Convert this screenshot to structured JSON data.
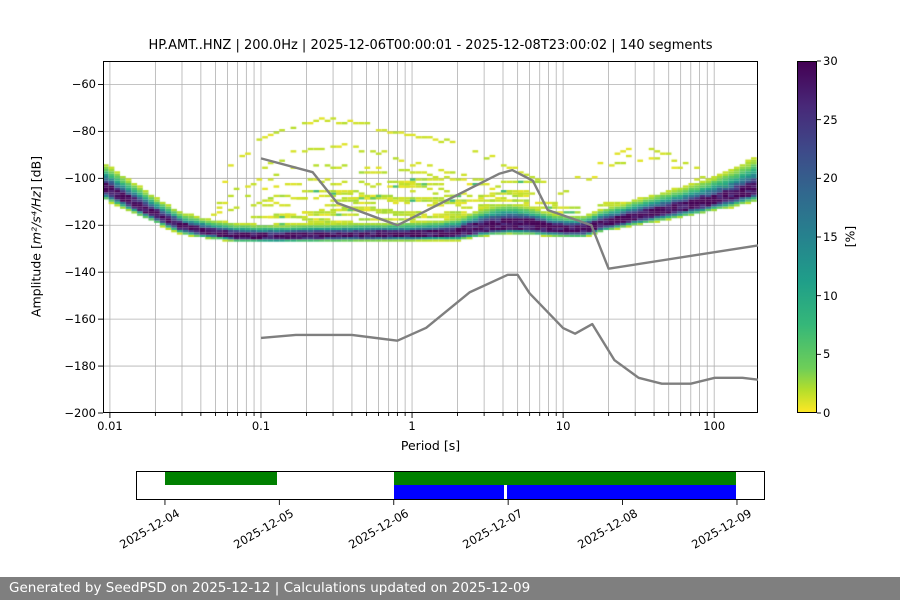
{
  "title": "HP.AMT..HNZ | 200.0Hz | 2025-12-06T00:00:01 - 2025-12-08T23:00:02 | 140 segments",
  "footer": "Generated by SeedPSD on 2025-12-12 | Calculations updated on 2025-12-09",
  "chart_data": {
    "type": "heatmap",
    "title": "HP.AMT..HNZ | 200.0Hz | 2025-12-06T00:00:01 - 2025-12-08T23:00:02 | 140 segments",
    "xlabel": "Period [s]",
    "ylabel": {
      "prefix": "Amplitude [",
      "math": "m²/s⁴/Hz",
      "suffix": "] [dB]"
    },
    "xscale": "log",
    "xlim": [
      0.009,
      195
    ],
    "ylim": [
      -200,
      -50
    ],
    "x_ticks": [
      0.01,
      0.1,
      1,
      10,
      100
    ],
    "x_tick_labels": [
      "0.01",
      "0.1",
      "1",
      "10",
      "100"
    ],
    "y_ticks": [
      -60,
      -80,
      -100,
      -120,
      -140,
      -160,
      -180,
      -200
    ],
    "y_tick_labels": [
      "−60",
      "−80",
      "−100",
      "−120",
      "−140",
      "−160",
      "−180",
      "−200"
    ],
    "grid": true,
    "colorbar": {
      "label": "[%]",
      "min": 0,
      "max": 30,
      "ticks": [
        0,
        5,
        10,
        15,
        20,
        25,
        30
      ],
      "colormap": "viridis_r",
      "stops": [
        [
          0,
          "#fde725"
        ],
        [
          0.0625,
          "#b5de2b"
        ],
        [
          0.125,
          "#6ece58"
        ],
        [
          0.25,
          "#35b779"
        ],
        [
          0.375,
          "#1f9e89"
        ],
        [
          0.5,
          "#26828e"
        ],
        [
          0.625,
          "#31688e"
        ],
        [
          0.75,
          "#3e4989"
        ],
        [
          0.875,
          "#482878"
        ],
        [
          1,
          "#440154"
        ]
      ]
    },
    "histogram_model": {
      "db_bin": 1,
      "period_step_octaves": 0.125,
      "mode_curve": [
        [
          0.009,
          -103.5
        ],
        [
          0.011,
          -106.5
        ],
        [
          0.015,
          -111
        ],
        [
          0.022,
          -116.5
        ],
        [
          0.03,
          -120.5
        ],
        [
          0.045,
          -122.8
        ],
        [
          0.07,
          -124.3
        ],
        [
          0.125,
          -124.6
        ],
        [
          0.25,
          -124.2
        ],
        [
          0.5,
          -124.0
        ],
        [
          1.0,
          -123.8
        ],
        [
          2.0,
          -123.0
        ],
        [
          3.0,
          -120.5
        ],
        [
          4.5,
          -119.2
        ],
        [
          6.0,
          -119.6
        ],
        [
          8.0,
          -120.8
        ],
        [
          11,
          -121.6
        ],
        [
          14,
          -121.5
        ],
        [
          17.8,
          -119.3
        ],
        [
          29.5,
          -116.3
        ],
        [
          49,
          -113.5
        ],
        [
          81,
          -110.6
        ],
        [
          135,
          -107.1
        ],
        [
          195,
          -104.0
        ]
      ],
      "core_halfwidth_db": [
        [
          0.009,
          1.6
        ],
        [
          0.02,
          1.0
        ],
        [
          0.05,
          0.8
        ],
        [
          0.3,
          0.8
        ],
        [
          1.5,
          0.9
        ],
        [
          3,
          1.6
        ],
        [
          5,
          1.9
        ],
        [
          7,
          1.5
        ],
        [
          10,
          1.1
        ],
        [
          20,
          1.2
        ],
        [
          60,
          1.3
        ],
        [
          195,
          1.5
        ]
      ],
      "spread_up_db": [
        [
          0.009,
          4.0
        ],
        [
          0.03,
          2.2
        ],
        [
          0.1,
          1.8
        ],
        [
          0.5,
          1.9
        ],
        [
          1.5,
          2.0
        ],
        [
          4,
          3.2
        ],
        [
          8,
          2.2
        ],
        [
          14,
          2.0
        ],
        [
          30,
          2.6
        ],
        [
          80,
          3.5
        ],
        [
          140,
          4.5
        ],
        [
          195,
          5.5
        ]
      ],
      "spread_down_db": [
        [
          0.009,
          2.0
        ],
        [
          0.05,
          1.1
        ],
        [
          1,
          1.1
        ],
        [
          5,
          1.5
        ],
        [
          20,
          1.3
        ],
        [
          100,
          1.8
        ],
        [
          195,
          2.2
        ]
      ],
      "scatter_top_db": [
        [
          0.009,
          12
        ],
        [
          0.018,
          6
        ],
        [
          0.03,
          8
        ],
        [
          0.05,
          4
        ],
        [
          0.08,
          8
        ],
        [
          0.1,
          14
        ],
        [
          0.15,
          20
        ],
        [
          0.3,
          26
        ],
        [
          0.6,
          27
        ],
        [
          1,
          25
        ],
        [
          2,
          24
        ],
        [
          4,
          22
        ],
        [
          7,
          20
        ],
        [
          10,
          16
        ],
        [
          15,
          10
        ],
        [
          25,
          8
        ],
        [
          50,
          8
        ],
        [
          100,
          8
        ],
        [
          150,
          10
        ],
        [
          195,
          13
        ]
      ],
      "scatter_density": [
        [
          0.009,
          0.4
        ],
        [
          0.02,
          0.2
        ],
        [
          0.05,
          0.15
        ],
        [
          0.1,
          0.35
        ],
        [
          0.2,
          0.5
        ],
        [
          0.5,
          0.55
        ],
        [
          1,
          0.5
        ],
        [
          3,
          0.5
        ],
        [
          7,
          0.45
        ],
        [
          12,
          0.35
        ],
        [
          25,
          0.3
        ],
        [
          60,
          0.25
        ],
        [
          120,
          0.3
        ],
        [
          195,
          0.45
        ]
      ],
      "outlier_arcs": [
        {
          "gap": 0.25,
          "pts": [
            [
              0.048,
              -117
            ],
            [
              0.065,
              -93.5
            ],
            [
              0.08,
              -88.6
            ],
            [
              0.11,
              -82.3
            ],
            [
              0.18,
              -77
            ],
            [
              0.3,
              -75
            ],
            [
              0.5,
              -76.5
            ],
            [
              0.65,
              -79.4
            ],
            [
              1.3,
              -82.8
            ],
            [
              2.1,
              -85
            ],
            [
              4,
              -94
            ],
            [
              5.6,
              -98
            ],
            [
              8,
              -102
            ]
          ]
        },
        {
          "gap": 0.45,
          "pts": [
            [
              0.05,
              -115
            ],
            [
              0.08,
              -100
            ],
            [
              0.12,
              -93
            ],
            [
              0.2,
              -88
            ],
            [
              0.3,
              -86
            ],
            [
              0.5,
              -88
            ],
            [
              1,
              -93
            ],
            [
              2,
              -98
            ],
            [
              4,
              -104
            ]
          ]
        },
        {
          "gap": 0.4,
          "pts": [
            [
              0.08,
              -104
            ],
            [
              0.16,
              -96
            ],
            [
              0.32,
              -94
            ],
            [
              1,
              -97
            ],
            [
              2.5,
              -102
            ],
            [
              6,
              -108
            ]
          ]
        },
        {
          "gap": 0.35,
          "pts": [
            [
              0.06,
              -110
            ],
            [
              0.13,
              -103
            ],
            [
              0.32,
              -101
            ],
            [
              1,
              -104
            ],
            [
              3.2,
              -108
            ],
            [
              10,
              -112
            ]
          ]
        },
        {
          "gap": 0.3,
          "pts": [
            [
              0.05,
              -115
            ],
            [
              0.1,
              -110
            ],
            [
              0.32,
              -107
            ],
            [
              1,
              -110
            ],
            [
              3.2,
              -113
            ],
            [
              10,
              -116
            ]
          ]
        },
        {
          "gap": 0.3,
          "pts": [
            [
              0.1,
              -117
            ],
            [
              0.32,
              -113
            ],
            [
              1,
              -115
            ],
            [
              4,
              -117
            ]
          ]
        },
        {
          "gap": 0.3,
          "pts": [
            [
              9,
              -108
            ],
            [
              12.6,
              -100
            ],
            [
              17.8,
              -93
            ],
            [
              26,
              -87.5
            ],
            [
              35,
              -87
            ],
            [
              50,
              -90
            ],
            [
              70,
              -95
            ],
            [
              100,
              -101
            ],
            [
              126,
              -105
            ]
          ]
        },
        {
          "gap": 0.5,
          "pts": [
            [
              12.6,
              -104
            ],
            [
              17.8,
              -97.5
            ],
            [
              26,
              -91.5
            ],
            [
              35,
              -91
            ],
            [
              50,
              -94
            ],
            [
              70,
              -99
            ],
            [
              90,
              -103
            ]
          ]
        }
      ]
    },
    "noise_models": {
      "color": "#7f7f7f",
      "nhnm": [
        [
          0.1,
          -91.5
        ],
        [
          0.22,
          -97.4
        ],
        [
          0.32,
          -110.5
        ],
        [
          0.8,
          -120.0
        ],
        [
          3.8,
          -98.0
        ],
        [
          4.6,
          -96.5
        ],
        [
          6.3,
          -101.0
        ],
        [
          7.9,
          -113.5
        ],
        [
          15.4,
          -120.0
        ],
        [
          20.0,
          -138.5
        ],
        [
          195.0,
          -128.6
        ]
      ],
      "nlnm": [
        [
          0.1,
          -168.0
        ],
        [
          0.17,
          -166.7
        ],
        [
          0.4,
          -166.7
        ],
        [
          0.8,
          -169.2
        ],
        [
          1.24,
          -163.7
        ],
        [
          2.4,
          -148.6
        ],
        [
          4.3,
          -141.1
        ],
        [
          5.0,
          -141.1
        ],
        [
          6.0,
          -149.0
        ],
        [
          10.0,
          -163.8
        ],
        [
          12.0,
          -166.2
        ],
        [
          15.6,
          -162.1
        ],
        [
          21.9,
          -177.5
        ],
        [
          31.6,
          -185.0
        ],
        [
          45.0,
          -187.5
        ],
        [
          70.0,
          -187.5
        ],
        [
          101.0,
          -185.0
        ],
        [
          154.0,
          -185.0
        ],
        [
          195.0,
          -185.8
        ]
      ]
    }
  },
  "timeline": {
    "tick_labels": [
      "2025-12-04",
      "2025-12-05",
      "2025-12-06",
      "2025-12-07",
      "2025-12-08",
      "2025-12-09"
    ],
    "tick_days": [
      0,
      1,
      2,
      3,
      4,
      5
    ],
    "axis_days": [
      -0.253,
      5.245
    ],
    "data_segments_days": [
      [
        0,
        0.982
      ],
      [
        2.0,
        4.99
      ]
    ],
    "psd_segments_days": [
      [
        2.0,
        2.96
      ],
      [
        2.99,
        4.99
      ]
    ],
    "data_color": "#008000",
    "psd_color": "#0000ff"
  }
}
